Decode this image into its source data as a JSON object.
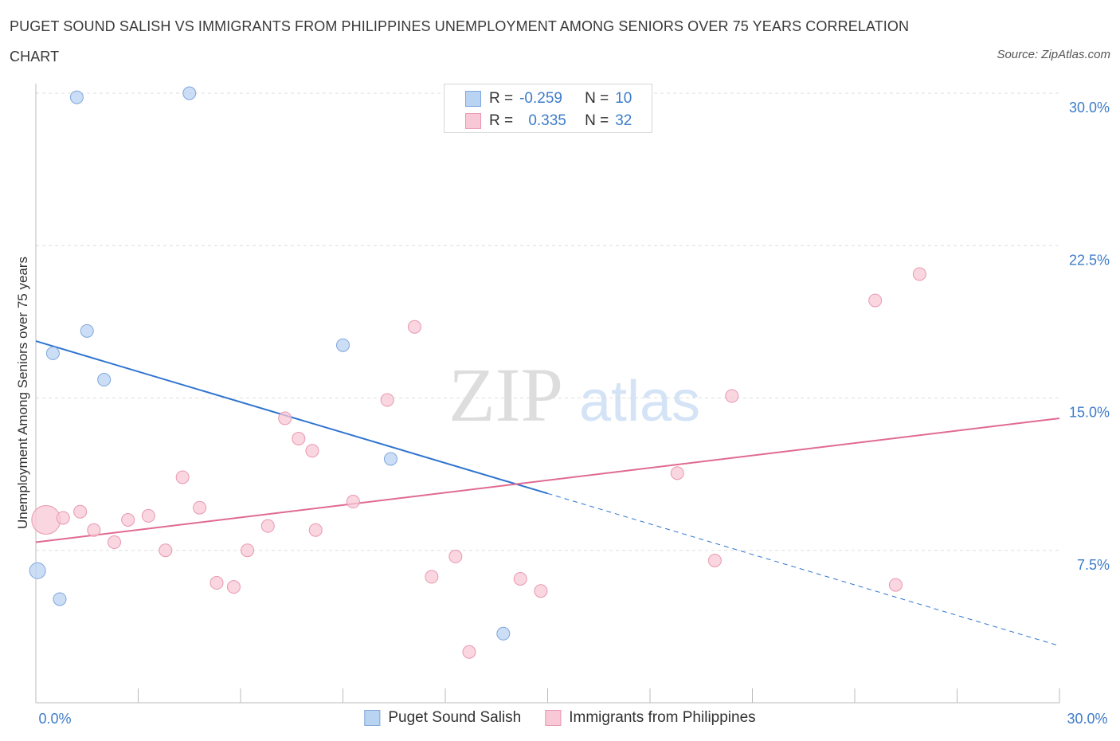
{
  "title": "PUGET SOUND SALISH VS IMMIGRANTS FROM PHILIPPINES UNEMPLOYMENT AMONG SENIORS OVER 75 YEARS CORRELATION CHART",
  "source": "Source: ZipAtlas.com",
  "watermark": {
    "zip": "ZIP",
    "atlas": "atlas"
  },
  "colors": {
    "blue_fill": "#b9d3f3",
    "blue_stroke": "#7fa7dc",
    "blue_line": "#2f74d0",
    "pink_fill": "#f8c8d6",
    "pink_stroke": "#e898b1",
    "pink_line": "#e06a92",
    "axis_text": "#3d7cc9",
    "grid": "#dddddd"
  },
  "stats": {
    "blue": {
      "r_label": "R =",
      "r_value": "-0.259",
      "n_label": "N =",
      "n_value": "10"
    },
    "pink": {
      "r_label": "R =",
      "r_value": "0.335",
      "n_label": "N =",
      "n_value": "32"
    }
  },
  "legend": {
    "blue": "Puget Sound Salish",
    "pink": "Immigrants from Philippines"
  },
  "chart_data": {
    "type": "scatter",
    "title": "PUGET SOUND SALISH VS IMMIGRANTS FROM PHILIPPINES UNEMPLOYMENT AMONG SENIORS OVER 75 YEARS CORRELATION CHART",
    "xlabel": "",
    "ylabel": "Unemployment Among Seniors over 75 years",
    "xlim": [
      0,
      30
    ],
    "ylim": [
      0,
      30
    ],
    "x_tick_labels": [
      "0.0%",
      "30.0%"
    ],
    "y_ticks": [
      7.5,
      15.0,
      22.5,
      30.0
    ],
    "y_tick_labels": [
      "7.5%",
      "15.0%",
      "22.5%",
      "30.0%"
    ],
    "grid": true,
    "legend_position": "bottom",
    "series": [
      {
        "name": "Puget Sound Salish",
        "points": [
          {
            "x": 1.2,
            "y": 29.8,
            "size": 1
          },
          {
            "x": 4.5,
            "y": 30.0,
            "size": 1
          },
          {
            "x": 1.5,
            "y": 18.3,
            "size": 1
          },
          {
            "x": 0.5,
            "y": 17.2,
            "size": 1
          },
          {
            "x": 2.0,
            "y": 15.9,
            "size": 1
          },
          {
            "x": 9.0,
            "y": 17.6,
            "size": 1
          },
          {
            "x": 10.4,
            "y": 12.0,
            "size": 1
          },
          {
            "x": 0.05,
            "y": 6.5,
            "size": 2
          },
          {
            "x": 0.7,
            "y": 5.1,
            "size": 1
          },
          {
            "x": 13.7,
            "y": 3.4,
            "size": 1
          }
        ],
        "trend": {
          "x1": 0,
          "y1": 17.8,
          "x2": 15.0,
          "y2": 10.3,
          "dash_to_x": 30.0,
          "dash_to_y": 2.8
        }
      },
      {
        "name": "Immigrants from Philippines",
        "points": [
          {
            "x": 0.3,
            "y": 9.0,
            "size": 3
          },
          {
            "x": 1.3,
            "y": 9.4,
            "size": 1
          },
          {
            "x": 0.8,
            "y": 9.1,
            "size": 1
          },
          {
            "x": 1.7,
            "y": 8.5,
            "size": 1
          },
          {
            "x": 2.3,
            "y": 7.9,
            "size": 1
          },
          {
            "x": 2.7,
            "y": 9.0,
            "size": 1
          },
          {
            "x": 3.3,
            "y": 9.2,
            "size": 1
          },
          {
            "x": 3.8,
            "y": 7.5,
            "size": 1
          },
          {
            "x": 4.3,
            "y": 11.1,
            "size": 1
          },
          {
            "x": 4.8,
            "y": 9.6,
            "size": 1
          },
          {
            "x": 5.3,
            "y": 5.9,
            "size": 1
          },
          {
            "x": 5.8,
            "y": 5.7,
            "size": 1
          },
          {
            "x": 6.2,
            "y": 7.5,
            "size": 1
          },
          {
            "x": 6.8,
            "y": 8.7,
            "size": 1
          },
          {
            "x": 7.3,
            "y": 14.0,
            "size": 1
          },
          {
            "x": 7.7,
            "y": 13.0,
            "size": 1
          },
          {
            "x": 8.1,
            "y": 12.4,
            "size": 1
          },
          {
            "x": 8.2,
            "y": 8.5,
            "size": 1
          },
          {
            "x": 9.3,
            "y": 9.9,
            "size": 1
          },
          {
            "x": 10.3,
            "y": 14.9,
            "size": 1
          },
          {
            "x": 11.1,
            "y": 18.5,
            "size": 1
          },
          {
            "x": 11.6,
            "y": 6.2,
            "size": 1
          },
          {
            "x": 12.3,
            "y": 7.2,
            "size": 1
          },
          {
            "x": 12.7,
            "y": 2.5,
            "size": 1
          },
          {
            "x": 14.2,
            "y": 6.1,
            "size": 1
          },
          {
            "x": 14.8,
            "y": 5.5,
            "size": 1
          },
          {
            "x": 18.8,
            "y": 11.3,
            "size": 1
          },
          {
            "x": 19.9,
            "y": 7.0,
            "size": 1
          },
          {
            "x": 20.4,
            "y": 15.1,
            "size": 1
          },
          {
            "x": 24.6,
            "y": 19.8,
            "size": 1
          },
          {
            "x": 25.2,
            "y": 5.8,
            "size": 1
          },
          {
            "x": 25.9,
            "y": 21.1,
            "size": 1
          }
        ],
        "trend": {
          "x1": 0,
          "y1": 7.9,
          "x2": 30.0,
          "y2": 14.0
        }
      }
    ]
  }
}
